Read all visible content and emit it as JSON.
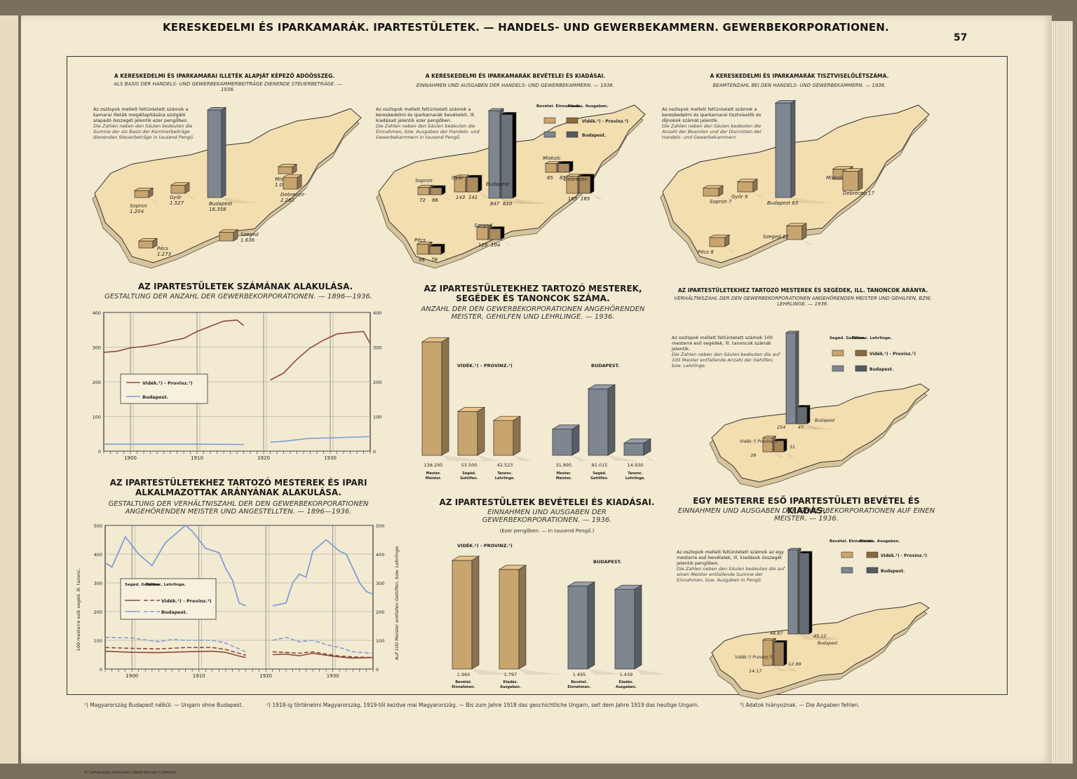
{
  "page": {
    "title": "KERESKEDELMI ÉS IPARKAMARÁK. IPARTESTÜLETEK. — HANDELS- UND GEWERBEKAMMERN. GEWERBEKORPORATIONEN.",
    "page_number": "57",
    "credit": "© Cartography Associates, David Rumsey Collection"
  },
  "colors": {
    "provinz": "#c8a56e",
    "provinz_dark": "#8a6a3c",
    "budapest": "#7e8690",
    "budapest_dark": "#555b62",
    "map": "#f3deb0",
    "line_provinz": "#8b4a3a",
    "line_budapest": "#7f9fd2"
  },
  "footnotes": {
    "f1": "¹) Magyarország Budapest nélkül. — Ungarn ohne Budapest.",
    "f2": "²) 1918-ig történelmi Magyarország, 1919-től kezdve mai Magyarország. — Bis zum Jahre 1918 das geschichtliche Ungarn, seit dem Jahre 1919 das heutige Ungarn.",
    "f3": "³) Adatok hiányoznak. — Die Angaben fehlen."
  },
  "legend": {
    "bevetel": "Bevétel. Einnahmen.",
    "kiadas": "Kiadás. Ausgaben.",
    "segod": "Segéd. Gehilfen.",
    "tanonc": "Tanonc. Lehrlinge.",
    "provinz": "Vidék.¹) - Provinz.¹)",
    "budapest": "Budapest."
  },
  "chart_data": [
    {
      "id": "c1",
      "type": "bar",
      "title": "A KERESKEDELMI ÉS IPARKAMARAI ILLETÉK ALAPJÁT KÉPEZŐ ADÓÖSSZEG.",
      "subtitle": "ALS BASIS DER HANDELS- UND GEWERBEKAMMERBEITRÄGE DIENENDE STEUERBETRÄGE. — 1936.",
      "note": "Az oszlopok mellett feltüntetett számok a kamarai illeték megállapítására szolgáló alapadó összegét jelentik ezer pengőben.",
      "note_de": "Die Zahlen neben den Säulen bedeuten die Summe der als Basis der Kammerbeiträge dienenden Steuerbeträge in tausend Pengő.",
      "categories": [
        "Sopron",
        "Győr",
        "Budapest",
        "Miskolc",
        "Debrecen",
        "Szeged",
        "Pécs"
      ],
      "values": [
        1204,
        1527,
        16358,
        1082,
        2202,
        1636,
        1273
      ],
      "labels": [
        "1.204",
        "1.527",
        "16.358",
        "1.082",
        "2.202",
        "1.636",
        "1.273"
      ]
    },
    {
      "id": "c2",
      "type": "bar",
      "title": "A KERESKEDELMI ÉS IPARKAMARÁK BEVÉTELEI ÉS KIADÁSAI.",
      "subtitle": "EINNAHMEN UND AUSGABEN DER HANDELS- UND GEWERBEKAMMERN. — 1936.",
      "note": "Az oszlopok mellett feltüntetett számok a kereskedelmi és iparkamarák bevételeit, ill. kiadásait jelentik ezer pengőben.",
      "note_de": "Die Zahlen neben den Säulen bedeuten die Einnahmen, bzw. Ausgaben der Handels- und Gewerbekammern in tausend Pengő.",
      "categories": [
        "Sopron",
        "Győr",
        "Budapest",
        "Miskolc",
        "Debrecen",
        "Szeged",
        "Pécs"
      ],
      "series": [
        {
          "name": "Bevétel. Einnahmen.",
          "values": [
            72,
            143,
            847,
            85,
            165,
            119,
            98
          ]
        },
        {
          "name": "Kiadás. Ausgaben.",
          "values": [
            66,
            141,
            810,
            85,
            165,
            104,
            78
          ]
        }
      ]
    },
    {
      "id": "c3",
      "type": "bar",
      "title": "A KERESKEDELMI ÉS IPARKAMARÁK TISZTVISELŐLÉTSZÁMA.",
      "subtitle": "BEAMTENZAHL BEI DEN HANDELS- UND GEWERBEKAMMERN. — 1936.",
      "note": "Az oszlopok mellett feltüntetett számok a kereskedelmi és iparkamarai tisztviselők és díjnokok számát jelentik.",
      "note_de": "Die Zahlen neben den Säulen bedeuten die Anzahl der Beamten und der Diurnisten der Handels- und Gewerbekammern.",
      "categories": [
        "Sopron",
        "Győr",
        "Budapest",
        "Miskolc",
        "Debrecen",
        "Szeged",
        "Pécs"
      ],
      "values": [
        7,
        9,
        83,
        9,
        17,
        12,
        8
      ]
    },
    {
      "id": "c4",
      "type": "line",
      "title": "AZ IPARTESTÜLETEK SZÁMÁNAK ALAKULÁSA.",
      "subtitle": "GESTALTUNG DER ANZAHL DER GEWERBEKORPORATIONEN. — 1896—1936.",
      "x_ticks": [
        "1900",
        "1910",
        "1920",
        "1930"
      ],
      "y_ticks": [
        "0",
        "100",
        "200",
        "300",
        "400"
      ],
      "ylim": [
        0,
        400
      ],
      "series": [
        {
          "name": "Vidék.¹) - Provinz.¹)",
          "segments": [
            {
              "x": [
                1896,
                1898,
                1900,
                1902,
                1904,
                1906,
                1908,
                1910,
                1912,
                1914,
                1916,
                1917
              ],
              "y": [
                285,
                288,
                298,
                302,
                308,
                318,
                325,
                345,
                360,
                375,
                378,
                362
              ]
            },
            {
              "x": [
                1921,
                1923,
                1925,
                1927,
                1929,
                1931,
                1933,
                1935,
                1936
              ],
              "y": [
                205,
                225,
                265,
                298,
                320,
                338,
                342,
                345,
                310
              ]
            }
          ]
        },
        {
          "name": "Budapest.",
          "segments": [
            {
              "x": [
                1896,
                1900,
                1905,
                1910,
                1917
              ],
              "y": [
                20,
                20,
                20,
                20,
                19
              ]
            },
            {
              "x": [
                1921,
                1923,
                1925,
                1927,
                1930,
                1933,
                1936
              ],
              "y": [
                26,
                28,
                33,
                37,
                38,
                40,
                42
              ]
            }
          ]
        }
      ]
    },
    {
      "id": "c5",
      "type": "bar",
      "title": "AZ IPARTESTÜLETEKHEZ TARTOZÓ MESTEREK, SEGÉDEK ÉS TANONCOK SZÁMA.",
      "subtitle": "ANZAHL DER DEN GEWERBEKORPORATIONEN ANGEHÖRENDEN MEISTER, GEHILFEN UND LEHRLINGE. — 1936.",
      "group_labels": [
        "VIDÉK.¹) - PROVINZ.¹)",
        "BUDAPEST."
      ],
      "bar_captions": [
        "Mester. Meister.",
        "Segéd. Gehilfen.",
        "Tanonc. Lehrlinge."
      ],
      "groups": [
        {
          "values": [
            138295,
            53500,
            42523
          ],
          "labels": [
            "138.295",
            "53.500",
            "42.523"
          ]
        },
        {
          "values": [
            31895,
            81015,
            14930
          ],
          "labels": [
            "31.895",
            "81.015",
            "14.930"
          ]
        }
      ]
    },
    {
      "id": "c6",
      "type": "bar",
      "title": "AZ IPARTESTÜLETEKHEZ TARTOZÓ MESTEREK ÉS SEGÉDEK, ILL. TANONCOK ARÁNYA.",
      "subtitle": "VERHÄLTNISZAHL DER DEN GEWERBEKORPORATIONEN ANGEHÖRENDEN MEISTER UND GEHILFEN, BZW. LEHRLINGE. — 1936.",
      "note": "Az oszlopok mellett feltüntetett számok 100 mesterre eső segédek, ill. tanoncok számát jelentik.",
      "note_de": "Die Zahlen neben den Säulen bedeuten die auf 100 Meister entfallende Anzahl der Gehilfen, bzw. Lehrlinge.",
      "categories": [
        "Vidék.¹) Provinz.¹)",
        "Budapest"
      ],
      "series": [
        {
          "name": "Segéd. Gehilfen.",
          "values": [
            39,
            254
          ]
        },
        {
          "name": "Tanonc. Lehrlinge.",
          "values": [
            31,
            47
          ]
        }
      ]
    },
    {
      "id": "c7",
      "type": "line",
      "title": "AZ IPARTESTÜLETEKHEZ TARTOZÓ MESTEREK ÉS IPARI ALKALMAZOTTAK ARÁNYÁNAK ALAKULÁSA.",
      "subtitle": "GESTALTUNG DER VERHÄLTNISZAHL DER DEN GEWERBEKORPORATIONEN ANGEHÖRENDEN MEISTER UND ANGESTELLTEN. — 1896—1936.",
      "ylabel_left": "100 mesterre esik segéd, ill. tanonc.",
      "ylabel_right": "Auf 100 Meister entfallen Gehilfen, bzw. Lehrlinge.",
      "x_ticks": [
        "1900",
        "1910",
        "1920",
        "1930"
      ],
      "y_ticks": [
        "0",
        "100",
        "200",
        "300",
        "400",
        "500"
      ],
      "ylim": [
        0,
        500
      ],
      "series": [
        {
          "name": "Budapest. Segéd. Gehilfen.",
          "segments": [
            {
              "x": [
                1896,
                1897,
                1899,
                1901,
                1903,
                1905,
                1907,
                1908,
                1909,
                1911,
                1913,
                1914,
                1915,
                1916,
                1917
              ],
              "y": [
                370,
                355,
                460,
                400,
                360,
                440,
                480,
                500,
                480,
                420,
                405,
                350,
                310,
                230,
                220
              ]
            },
            {
              "x": [
                1921,
                1923,
                1924,
                1925,
                1926,
                1927,
                1929,
                1930,
                1931,
                1932,
                1933,
                1934,
                1935,
                1936
              ],
              "y": [
                220,
                230,
                300,
                330,
                320,
                410,
                450,
                430,
                410,
                400,
                350,
                300,
                270,
                260
              ]
            }
          ]
        },
        {
          "name": "Vidék. Segéd. Gehilfen.",
          "segments": [
            {
              "x": [
                1896,
                1900,
                1904,
                1908,
                1912,
                1914,
                1916,
                1917
              ],
              "y": [
                62,
                58,
                57,
                60,
                62,
                58,
                45,
                40
              ]
            },
            {
              "x": [
                1921,
                1923,
                1925,
                1927,
                1929,
                1931,
                1933,
                1936
              ],
              "y": [
                50,
                52,
                46,
                55,
                48,
                42,
                38,
                40
              ]
            }
          ]
        },
        {
          "name": "Budapest. Tanonc. Lehrlinge.",
          "segments": [
            {
              "x": [
                1896,
                1900,
                1904,
                1906,
                1908,
                1912,
                1914,
                1916,
                1917
              ],
              "y": [
                110,
                108,
                95,
                103,
                100,
                100,
                90,
                70,
                60
              ]
            },
            {
              "x": [
                1921,
                1923,
                1925,
                1927,
                1929,
                1931,
                1933,
                1936
              ],
              "y": [
                100,
                110,
                95,
                100,
                85,
                75,
                60,
                55
              ]
            }
          ]
        },
        {
          "name": "Vidék. Tanonc. Lehrlinge.",
          "segments": [
            {
              "x": [
                1896,
                1900,
                1904,
                1908,
                1912,
                1914,
                1916,
                1917
              ],
              "y": [
                75,
                72,
                70,
                75,
                75,
                68,
                55,
                48
              ]
            },
            {
              "x": [
                1921,
                1923,
                1925,
                1927,
                1929,
                1931,
                1933,
                1936
              ],
              "y": [
                60,
                58,
                55,
                60,
                52,
                45,
                42,
                40
              ]
            }
          ]
        }
      ]
    },
    {
      "id": "c8",
      "type": "bar",
      "title": "AZ IPARTESTÜLETEK BEVÉTELEI ÉS KIADÁSAI.",
      "subtitle": "EINNAHMEN UND AUSGABEN DER GEWERBEKORPORATIONEN. — 1936.",
      "unit": "(Ezer pengőben. — In tausend Pengő.)",
      "group_labels": [
        "VIDÉK.¹) - PROVINZ.¹)",
        "BUDAPEST."
      ],
      "bar_captions": [
        "Bevétel. Einnahmen.",
        "Kiadás. Ausgaben."
      ],
      "groups": [
        {
          "values": [
            1960,
            1797
          ],
          "labels": [
            "1.960",
            "1.797"
          ]
        },
        {
          "values": [
            1495,
            1439
          ],
          "labels": [
            "1.495",
            "1.439"
          ]
        }
      ]
    },
    {
      "id": "c9",
      "type": "bar",
      "title": "EGY MESTERRE ESŐ IPARTESTÜLETI BEVÉTEL ÉS KIADÁS.",
      "subtitle": "EINNAHMEN UND AUSGABEN DER GEWERBEKORPORATIONEN AUF EINEN MEISTER. — 1936.",
      "note": "Az oszlopok mellett feltüntetett számok az egy mesterre eső bevételek, ill. kiadások összegét jelentik pengőben.",
      "note_de": "Die Zahlen neben den Säulen bedeuten die auf einen Meister entfallende Summe der Einnahmen, bzw. Ausgaben in Pengő.",
      "categories": [
        "Vidék.¹) Provinz.¹)",
        "Budapest"
      ],
      "series": [
        {
          "name": "Bevétel. Einnahmen.",
          "values": [
            14.17,
            46.87
          ]
        },
        {
          "name": "Kiadás. Ausgaben.",
          "values": [
            12.99,
            45.12
          ]
        }
      ],
      "labels": [
        "14.17",
        "12.99",
        "46.87",
        "45.12"
      ]
    }
  ]
}
